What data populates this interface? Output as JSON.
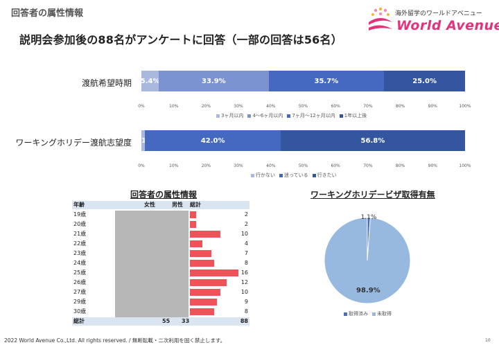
{
  "header": {
    "section_label": "回答者の属性情報",
    "title": "説明会参加後の88名がアンケートに回答（一部の回答は56名）",
    "logo_tagline": "海外留学のワールドアベニュー",
    "logo_word": "World Avenue"
  },
  "colors": {
    "seg1": "#a9b8dd",
    "seg2": "#7b93d0",
    "seg3": "#4569c0",
    "seg4": "#33569e",
    "bar": "#f0525a",
    "pie_main": "#97b9e0",
    "pie_small": "#4a6fb8"
  },
  "chart_data": [
    {
      "type": "bar",
      "orientation": "horizontal-stacked-100",
      "category": "渡航希望時期",
      "series": [
        {
          "name": "3ヶ月以内",
          "value": 5.4,
          "label": "5.4%"
        },
        {
          "name": "4〜6ヶ月以内",
          "value": 33.9,
          "label": "33.9%"
        },
        {
          "name": "7ヶ月〜12ヶ月以内",
          "value": 35.7,
          "label": "35.7%"
        },
        {
          "name": "1年以上後",
          "value": 25.0,
          "label": "25.0%"
        }
      ],
      "ticks": [
        "0%",
        "10%",
        "20%",
        "30%",
        "40%",
        "50%",
        "60%",
        "70%",
        "80%",
        "90%",
        "100%"
      ],
      "xlim": [
        0,
        100
      ],
      "legend": "bottom"
    },
    {
      "type": "bar",
      "orientation": "horizontal-stacked-100",
      "category": "ワーキングホリデー渡航志望度",
      "series": [
        {
          "name": "行かない",
          "value": 1.1,
          "label": "1.1%"
        },
        {
          "name": "迷っている",
          "value": 42.0,
          "label": "42.0%"
        },
        {
          "name": "行きたい",
          "value": 56.8,
          "label": "56.8%"
        }
      ],
      "ticks": [
        "0%",
        "10%",
        "20%",
        "30%",
        "40%",
        "50%",
        "60%",
        "70%",
        "80%",
        "90%",
        "100%"
      ],
      "xlim": [
        0,
        100
      ],
      "legend": "bottom"
    },
    {
      "type": "table",
      "title": "回答者の属性情報",
      "headers": [
        "年齢",
        "女性",
        "男性",
        "総計"
      ],
      "rows": [
        {
          "age": "19歳",
          "total": 2
        },
        {
          "age": "20歳",
          "total": 2
        },
        {
          "age": "21歳",
          "total": 10
        },
        {
          "age": "22歳",
          "total": 4
        },
        {
          "age": "23歳",
          "total": 7
        },
        {
          "age": "24歳",
          "total": 8
        },
        {
          "age": "25歳",
          "total": 16
        },
        {
          "age": "26歳",
          "total": 12
        },
        {
          "age": "27歳",
          "total": 10
        },
        {
          "age": "29歳",
          "total": 9
        },
        {
          "age": "30歳",
          "total": 8
        }
      ],
      "max_total": 16,
      "footer": {
        "label": "総計",
        "female": 55,
        "male": 33,
        "total": 88
      }
    },
    {
      "type": "pie",
      "title": "ワーキングホリデービザ取得有無",
      "slices": [
        {
          "name": "取得済み",
          "value": 1.1,
          "label": "1.1%"
        },
        {
          "name": "未取得",
          "value": 98.9,
          "label": "98.9%"
        }
      ],
      "legend": "bottom"
    }
  ],
  "footer": {
    "copyright": "2022 World Avenue Co.,Ltd. All rights reserved. / 無断転載・二次利用を固く禁止します。",
    "page_number": "10"
  }
}
